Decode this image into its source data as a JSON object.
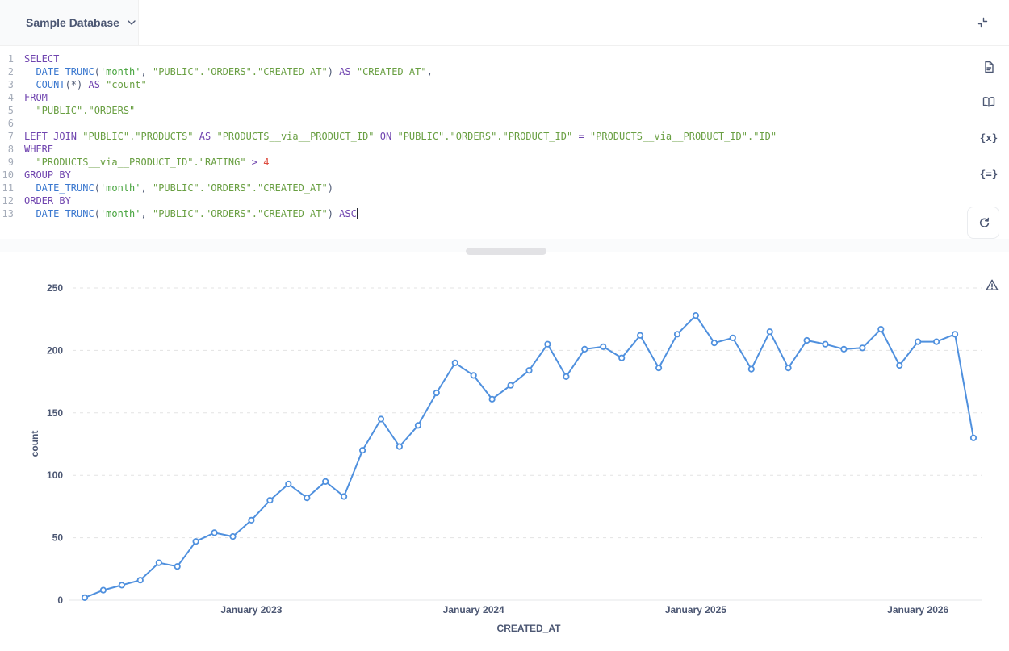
{
  "header": {
    "database_label": "Sample Database"
  },
  "icons": {
    "variables": "{x}",
    "snippets": "{=}"
  },
  "editor": {
    "language": "sql",
    "lines": [
      [
        [
          "kw",
          "SELECT"
        ]
      ],
      [
        [
          "pl",
          "  "
        ],
        [
          "fn",
          "DATE_TRUNC"
        ],
        [
          "pl",
          "("
        ],
        [
          "str",
          "'month'"
        ],
        [
          "pl",
          ", "
        ],
        [
          "id",
          "\"PUBLIC\".\"ORDERS\".\"CREATED_AT\""
        ],
        [
          "pl",
          ") "
        ],
        [
          "kw",
          "AS"
        ],
        [
          "pl",
          " "
        ],
        [
          "id",
          "\"CREATED_AT\""
        ],
        [
          "pl",
          ","
        ]
      ],
      [
        [
          "pl",
          "  "
        ],
        [
          "fn",
          "COUNT"
        ],
        [
          "pl",
          "(*) "
        ],
        [
          "kw",
          "AS"
        ],
        [
          "pl",
          " "
        ],
        [
          "id",
          "\"count\""
        ]
      ],
      [
        [
          "kw",
          "FROM"
        ]
      ],
      [
        [
          "pl",
          "  "
        ],
        [
          "id",
          "\"PUBLIC\".\"ORDERS\""
        ]
      ],
      [],
      [
        [
          "kw",
          "LEFT JOIN"
        ],
        [
          "pl",
          " "
        ],
        [
          "id",
          "\"PUBLIC\".\"PRODUCTS\""
        ],
        [
          "pl",
          " "
        ],
        [
          "kw",
          "AS"
        ],
        [
          "pl",
          " "
        ],
        [
          "id",
          "\"PRODUCTS__via__PRODUCT_ID\""
        ],
        [
          "pl",
          " "
        ],
        [
          "kw",
          "ON"
        ],
        [
          "pl",
          " "
        ],
        [
          "id",
          "\"PUBLIC\".\"ORDERS\".\"PRODUCT_ID\""
        ],
        [
          "pl",
          " "
        ],
        [
          "kw",
          "="
        ],
        [
          "pl",
          " "
        ],
        [
          "id",
          "\"PRODUCTS__via__PRODUCT_ID\".\"ID\""
        ]
      ],
      [
        [
          "kw",
          "WHERE"
        ]
      ],
      [
        [
          "pl",
          "  "
        ],
        [
          "id",
          "\"PRODUCTS__via__PRODUCT_ID\".\"RATING\""
        ],
        [
          "pl",
          " "
        ],
        [
          "kw",
          ">"
        ],
        [
          "pl",
          " "
        ],
        [
          "num",
          "4"
        ]
      ],
      [
        [
          "kw",
          "GROUP BY"
        ]
      ],
      [
        [
          "pl",
          "  "
        ],
        [
          "fn",
          "DATE_TRUNC"
        ],
        [
          "pl",
          "("
        ],
        [
          "str",
          "'month'"
        ],
        [
          "pl",
          ", "
        ],
        [
          "id",
          "\"PUBLIC\".\"ORDERS\".\"CREATED_AT\""
        ],
        [
          "pl",
          ")"
        ]
      ],
      [
        [
          "kw",
          "ORDER BY"
        ]
      ],
      [
        [
          "pl",
          "  "
        ],
        [
          "fn",
          "DATE_TRUNC"
        ],
        [
          "pl",
          "("
        ],
        [
          "str",
          "'month'"
        ],
        [
          "pl",
          ", "
        ],
        [
          "id",
          "\"PUBLIC\".\"ORDERS\".\"CREATED_AT\""
        ],
        [
          "pl",
          ") "
        ],
        [
          "kw",
          "ASC"
        ],
        [
          "cursor",
          ""
        ]
      ]
    ]
  },
  "chart_data": {
    "type": "line",
    "title": "",
    "xlabel": "CREATED_AT",
    "ylabel": "count",
    "x_unit": "month",
    "x": [
      "2022-04",
      "2022-05",
      "2022-06",
      "2022-07",
      "2022-08",
      "2022-09",
      "2022-10",
      "2022-11",
      "2022-12",
      "2023-01",
      "2023-02",
      "2023-03",
      "2023-04",
      "2023-05",
      "2023-06",
      "2023-07",
      "2023-08",
      "2023-09",
      "2023-10",
      "2023-11",
      "2023-12",
      "2024-01",
      "2024-02",
      "2024-03",
      "2024-04",
      "2024-05",
      "2024-06",
      "2024-07",
      "2024-08",
      "2024-09",
      "2024-10",
      "2024-11",
      "2024-12",
      "2025-01",
      "2025-02",
      "2025-03",
      "2025-04",
      "2025-05",
      "2025-06",
      "2025-07",
      "2025-08",
      "2025-09",
      "2025-10",
      "2025-11",
      "2025-12",
      "2026-01",
      "2026-02",
      "2026-03",
      "2026-04"
    ],
    "values": [
      2,
      8,
      12,
      16,
      30,
      27,
      47,
      54,
      51,
      64,
      80,
      93,
      82,
      95,
      83,
      120,
      145,
      123,
      140,
      166,
      190,
      180,
      161,
      172,
      184,
      205,
      179,
      201,
      203,
      194,
      212,
      186,
      213,
      228,
      206,
      210,
      185,
      215,
      186,
      208,
      205,
      201,
      202,
      217,
      188,
      207,
      207,
      213,
      130
    ],
    "ylim": [
      0,
      250
    ],
    "y_ticks": [
      0,
      50,
      100,
      150,
      200,
      250
    ],
    "x_tick_labels": [
      "January 2023",
      "January 2024",
      "January 2025",
      "January 2026"
    ],
    "x_tick_indices": [
      9,
      21,
      33,
      45
    ],
    "grid": "horizontal-dashed",
    "legend": "none",
    "line_color": "#4f90de",
    "marker": "open-circle"
  }
}
